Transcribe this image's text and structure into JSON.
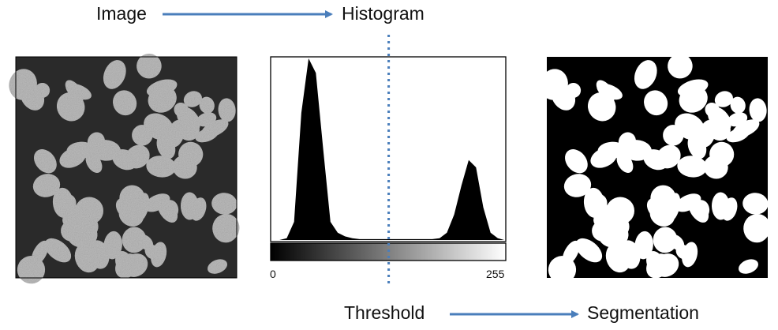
{
  "labels": {
    "image": "Image",
    "histogram": "Histogram",
    "threshold": "Threshold",
    "segmentation": "Segmentation"
  },
  "histogram_axis": {
    "min_label": "0",
    "max_label": "255"
  },
  "chart_data": {
    "type": "area",
    "x": [
      0,
      8,
      16,
      24,
      32,
      40,
      48,
      56,
      64,
      72,
      80,
      88,
      96,
      104,
      112,
      120,
      128,
      136,
      144,
      152,
      160,
      168,
      176,
      184,
      192,
      200,
      208,
      216,
      224,
      232,
      240,
      248,
      255
    ],
    "values": [
      0,
      0,
      1,
      10,
      70,
      100,
      92,
      50,
      10,
      4,
      2,
      1,
      0.5,
      0.5,
      0.5,
      0.5,
      0.5,
      0.5,
      0.5,
      0.5,
      0.5,
      0.5,
      0.5,
      1,
      4,
      14,
      30,
      44,
      40,
      18,
      4,
      1,
      0
    ],
    "xlim": [
      0,
      255
    ],
    "threshold": 128
  },
  "colors": {
    "arrow": "#4a7ebb",
    "threshold_line": "#4a7ebb",
    "ink": "#000000"
  }
}
